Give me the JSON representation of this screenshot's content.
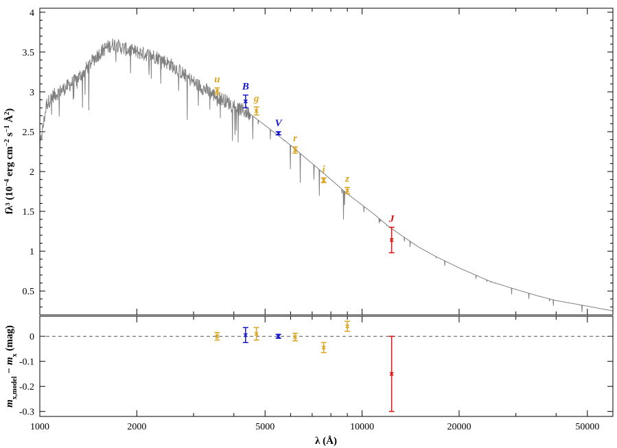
{
  "chart_data": [
    {
      "type": "line",
      "panel": "top",
      "xlabel": "λ (Å)",
      "ylabel_parts": [
        "fλ³ (10",
        "−4",
        " erg cm",
        "−2",
        " s",
        "−1",
        " Å",
        "2",
        ")"
      ],
      "xscale": "log",
      "xlim": [
        1000,
        60000
      ],
      "ylim": [
        0.2,
        4.05
      ],
      "yticks": [
        0.5,
        1,
        1.5,
        2,
        2.5,
        3,
        3.5,
        4
      ],
      "ytick_labels": [
        "0.5",
        "1",
        "1.5",
        "2",
        "2.5",
        "3",
        "3.5",
        "4"
      ],
      "xticks": [
        1000,
        2000,
        5000,
        10000,
        20000,
        50000
      ],
      "xtick_labels": [
        "1000",
        "2000",
        "5000",
        "10000",
        "20000",
        "50000"
      ],
      "model_spectrum": {
        "name": "",
        "color": "#808080",
        "x": [
          1000,
          1050,
          1100,
          1200,
          1300,
          1400,
          1500,
          1600,
          1700,
          1800,
          1900,
          2000,
          2100,
          2200,
          2300,
          2400,
          2600,
          2800,
          3000,
          3200,
          3400,
          3600,
          3800,
          4000,
          4500,
          5000,
          5500,
          6000,
          7000,
          8000,
          9000,
          10000,
          11000,
          12000,
          13000,
          15000,
          17000,
          20000,
          25000,
          30000,
          35000,
          40000,
          50000,
          60000
        ],
        "y": [
          2.3,
          2.85,
          2.95,
          3.05,
          3.15,
          3.3,
          3.45,
          3.55,
          3.6,
          3.55,
          3.52,
          3.5,
          3.48,
          3.46,
          3.44,
          3.4,
          3.32,
          3.22,
          3.12,
          3.05,
          2.98,
          2.93,
          2.88,
          2.82,
          2.72,
          2.58,
          2.45,
          2.33,
          2.1,
          1.9,
          1.72,
          1.58,
          1.45,
          1.32,
          1.22,
          1.05,
          0.93,
          0.79,
          0.62,
          0.52,
          0.44,
          0.38,
          0.31,
          0.25
        ]
      },
      "photometry": [
        {
          "band": "u",
          "x": 3550,
          "y": 3.01,
          "err": 0.04,
          "color": "#DAA520"
        },
        {
          "band": "B",
          "x": 4350,
          "y": 2.88,
          "err": 0.08,
          "color": "#1515C8"
        },
        {
          "band": "g",
          "x": 4700,
          "y": 2.76,
          "err": 0.05,
          "color": "#DAA520"
        },
        {
          "band": "V",
          "x": 5500,
          "y": 2.48,
          "err": 0.02,
          "color": "#1515C8"
        },
        {
          "band": "r",
          "x": 6200,
          "y": 2.27,
          "err": 0.04,
          "color": "#DAA520"
        },
        {
          "band": "i",
          "x": 7600,
          "y": 1.89,
          "err": 0.03,
          "color": "#DAA520"
        },
        {
          "band": "z",
          "x": 9000,
          "y": 1.76,
          "err": 0.04,
          "color": "#DAA520"
        },
        {
          "band": "J",
          "x": 12350,
          "y": 1.14,
          "err": 0.16,
          "color": "#E01010"
        }
      ]
    },
    {
      "type": "scatter",
      "panel": "bottom",
      "xlabel": "λ (Å)",
      "ylabel_parts": [
        "m",
        "x,model",
        " − m",
        "x",
        " (mag)"
      ],
      "xscale": "log",
      "xlim": [
        1000,
        60000
      ],
      "ylim": [
        -0.32,
        0.08
      ],
      "yticks": [
        0,
        -0.1,
        -0.2,
        -0.3
      ],
      "ytick_labels": [
        "0",
        "-0.1",
        "-0.2",
        "-0.3"
      ],
      "reference_line": 0,
      "residuals": [
        {
          "band": "u",
          "x": 3550,
          "y": 0.0,
          "err": 0.015,
          "color": "#DAA520"
        },
        {
          "band": "B",
          "x": 4350,
          "y": 0.005,
          "err": 0.03,
          "color": "#1515C8"
        },
        {
          "band": "g",
          "x": 4700,
          "y": 0.01,
          "err": 0.025,
          "color": "#DAA520"
        },
        {
          "band": "V",
          "x": 5500,
          "y": 0.0,
          "err": 0.008,
          "color": "#1515C8"
        },
        {
          "band": "r",
          "x": 6200,
          "y": -0.003,
          "err": 0.015,
          "color": "#DAA520"
        },
        {
          "band": "i",
          "x": 7600,
          "y": -0.045,
          "err": 0.02,
          "color": "#DAA520"
        },
        {
          "band": "z",
          "x": 9000,
          "y": 0.04,
          "err": 0.02,
          "color": "#DAA520"
        },
        {
          "band": "J",
          "x": 12350,
          "y": -0.15,
          "err": 0.15,
          "color": "#E01010"
        }
      ]
    }
  ]
}
